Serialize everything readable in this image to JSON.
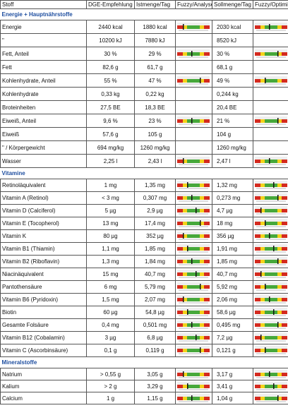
{
  "header": [
    "Stoff",
    "DGE-Empfehlung",
    "Istmenge/Tag",
    "Fuzzy/Analyse",
    "Sollmenge/Tag",
    "Fuzzy/Optimi"
  ],
  "sections": [
    {
      "title": "Energie + Hauptnährstoffe",
      "rows": [
        {
          "cells": [
            "Energie",
            "2440 kcal",
            "1880 kcal",
            "2030 kcal"
          ],
          "fuzzy": true
        },
        {
          "cells": [
            "\"",
            "10200 kJ",
            "7880 kJ",
            "8520 kJ"
          ],
          "fuzzy": false
        },
        {
          "cells": [
            "Fett, Anteil",
            "30 %",
            "29 %",
            "30 %"
          ],
          "fuzzy": true
        },
        {
          "cells": [
            "Fett",
            "82,6 g",
            "61,7 g",
            "68,1 g"
          ],
          "fuzzy": false
        },
        {
          "cells": [
            "Kohlenhydrate, Anteil",
            "55 %",
            "47 %",
            "49 %"
          ],
          "fuzzy": true
        },
        {
          "cells": [
            "Kohlenhydrate",
            "0,33 kg",
            "0,22 kg",
            "0,244 kg"
          ],
          "fuzzy": false
        },
        {
          "cells": [
            "Broteinheiten",
            "27,5 BE",
            "18,3 BE",
            "20,4 BE"
          ],
          "fuzzy": false
        },
        {
          "cells": [
            "Eiweiß, Anteil",
            "9,6 %",
            "23 %",
            "21 %"
          ],
          "fuzzy": true
        },
        {
          "cells": [
            "Eiweiß",
            "57,6 g",
            "105 g",
            "104 g"
          ],
          "fuzzy": false
        },
        {
          "cells": [
            "\"   / Körpergewicht",
            "694 mg/kg",
            "1260 mg/kg",
            "1260 mg/kg"
          ],
          "fuzzy": false
        },
        {
          "cells": [
            "Wasser",
            "2,25 l",
            "2,43 l",
            "2,47 l"
          ],
          "fuzzy": true
        }
      ]
    },
    {
      "title": "Vitamine",
      "rows": [
        {
          "cells": [
            "Retinoläquivalent",
            "1 mg",
            "1,35 mg",
            "1,32 mg"
          ],
          "fuzzy": true
        },
        {
          "cells": [
            "Vitamin A (Retinol)",
            "< 3 mg",
            "0,307 mg",
            "0,273 mg"
          ],
          "fuzzy": true
        },
        {
          "cells": [
            "Vitamin D (Calciferol)",
            "5 µg",
            "2,9 µg",
            "4,7 µg"
          ],
          "fuzzy": true
        },
        {
          "cells": [
            "Vitamin E (Tocopherol)",
            "13 mg",
            "17,4 mg",
            "18 mg"
          ],
          "fuzzy": true
        },
        {
          "cells": [
            "Vitamin K",
            "80 µg",
            "352 µg",
            "356 µg"
          ],
          "fuzzy": true
        },
        {
          "cells": [
            "Vitamin B1 (Thiamin)",
            "1,1 mg",
            "1,85 mg",
            "1,91 mg"
          ],
          "fuzzy": true
        },
        {
          "cells": [
            "Vitamin B2 (Riboflavin)",
            "1,3 mg",
            "1,84 mg",
            "1,85 mg"
          ],
          "fuzzy": true
        },
        {
          "cells": [
            "Niacinäquivalent",
            "15 mg",
            "40,7 mg",
            "40,7 mg"
          ],
          "fuzzy": true
        },
        {
          "cells": [
            "Pantothensäure",
            "6 mg",
            "5,79 mg",
            "5,92 mg"
          ],
          "fuzzy": true
        },
        {
          "cells": [
            "Vitamin B6 (Pyridoxin)",
            "1,5 mg",
            "2,07 mg",
            "2,06 mg"
          ],
          "fuzzy": true
        },
        {
          "cells": [
            "Biotin",
            "60 µg",
            "54,8 µg",
            "58,6 µg"
          ],
          "fuzzy": true
        },
        {
          "cells": [
            "Gesamte Folsäure",
            "0,4 mg",
            "0,501 mg",
            "0,495 mg"
          ],
          "fuzzy": true
        },
        {
          "cells": [
            "Vitamin B12 (Cobalamin)",
            "3 µg",
            "6,8 µg",
            "7,2 µg"
          ],
          "fuzzy": true
        },
        {
          "cells": [
            "Vitamin C (Ascorbinsäure)",
            "0,1 g",
            "0,119 g",
            "0,121 g"
          ],
          "fuzzy": true
        }
      ]
    },
    {
      "title": "Mineralstoffe",
      "rows": [
        {
          "cells": [
            "Natrium",
            "> 0,55 g",
            "3,05 g",
            "3,17 g"
          ],
          "fuzzy": true
        },
        {
          "cells": [
            "Kalium",
            "> 2 g",
            "3,29 g",
            "3,41 g"
          ],
          "fuzzy": true
        },
        {
          "cells": [
            "Calcium",
            "1 g",
            "1,15 g",
            "1,04 g"
          ],
          "fuzzy": true
        }
      ]
    }
  ]
}
